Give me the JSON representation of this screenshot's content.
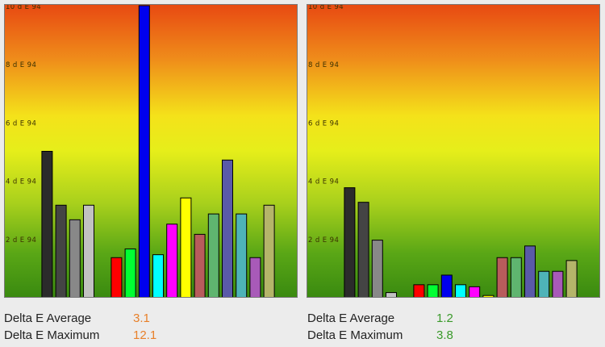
{
  "chart_data": [
    {
      "type": "bar",
      "ylim": [
        0,
        10
      ],
      "yticks": [
        2,
        4,
        6,
        8,
        10
      ],
      "ytick_labels": [
        "2 d E 94",
        "4 d E 94",
        "6 d E 94",
        "8 d E 94",
        "10 d E 94"
      ],
      "background": "vertical gradient red (top) to yellow to green (bottom)",
      "bars": [
        {
          "value": 0,
          "color": "#2b2b2b"
        },
        {
          "value": 0,
          "color": "#2b2b2b"
        },
        {
          "value": 5.0,
          "color": "#2b2b2b"
        },
        {
          "value": 3.15,
          "color": "#444444"
        },
        {
          "value": 2.65,
          "color": "#888888"
        },
        {
          "value": 3.15,
          "color": "#c2c2c2"
        },
        {
          "value": 0,
          "color": "#000000"
        },
        {
          "value": 1.35,
          "color": "#ff0000"
        },
        {
          "value": 1.65,
          "color": "#00ff33"
        },
        {
          "value": 10.0,
          "color": "#0000ee"
        },
        {
          "value": 1.45,
          "color": "#00ffff"
        },
        {
          "value": 2.5,
          "color": "#ff00ff"
        },
        {
          "value": 3.4,
          "color": "#ffff00"
        },
        {
          "value": 2.15,
          "color": "#b85c5c"
        },
        {
          "value": 2.85,
          "color": "#5fb56f"
        },
        {
          "value": 4.7,
          "color": "#5a5aa8"
        },
        {
          "value": 2.85,
          "color": "#4eb3b8"
        },
        {
          "value": 1.35,
          "color": "#a85ab8"
        },
        {
          "value": 3.15,
          "color": "#b5b56a"
        }
      ]
    },
    {
      "type": "bar",
      "ylim": [
        0,
        10
      ],
      "yticks": [
        2,
        4,
        6,
        8,
        10
      ],
      "ytick_labels": [
        "2 d E 94",
        "4 d E 94",
        "6 d E 94",
        "8 d E 94",
        "10 d E 94"
      ],
      "background": "vertical gradient red (top) to yellow to green (bottom)",
      "bars": [
        {
          "value": 0,
          "color": "#2b2b2b"
        },
        {
          "value": 0,
          "color": "#2b2b2b"
        },
        {
          "value": 3.75,
          "color": "#2b2b2b"
        },
        {
          "value": 3.25,
          "color": "#444444"
        },
        {
          "value": 1.95,
          "color": "#888888"
        },
        {
          "value": 0.15,
          "color": "#c2c2c2"
        },
        {
          "value": 0,
          "color": "#000000"
        },
        {
          "value": 0.42,
          "color": "#ff0000"
        },
        {
          "value": 0.42,
          "color": "#00ff33"
        },
        {
          "value": 0.75,
          "color": "#0000ee"
        },
        {
          "value": 0.42,
          "color": "#00ffff"
        },
        {
          "value": 0.35,
          "color": "#ff00ff"
        },
        {
          "value": 0.05,
          "color": "#ffff00"
        },
        {
          "value": 1.35,
          "color": "#b85c5c"
        },
        {
          "value": 1.35,
          "color": "#5fb56f"
        },
        {
          "value": 1.75,
          "color": "#5a5aa8"
        },
        {
          "value": 0.88,
          "color": "#4eb3b8"
        },
        {
          "value": 0.88,
          "color": "#a85ab8"
        },
        {
          "value": 1.25,
          "color": "#b5b56a"
        }
      ]
    }
  ],
  "stats": {
    "left": {
      "average_label": "Delta E Average",
      "average_value": "3.1",
      "maximum_label": "Delta E Maximum",
      "maximum_value": "12.1",
      "value_color": "#e8802a"
    },
    "right": {
      "average_label": "Delta E Average",
      "average_value": "1.2",
      "maximum_label": "Delta E Maximum",
      "maximum_value": "3.8",
      "value_color": "#3a9a2a"
    }
  }
}
